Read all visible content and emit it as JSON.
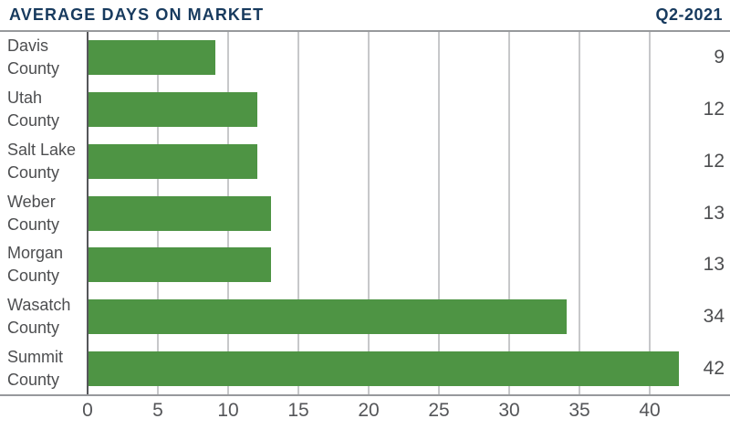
{
  "header": {
    "title": "AVERAGE DAYS ON MARKET",
    "period": "Q2-2021"
  },
  "colors": {
    "title": "#173a5e",
    "bar": "#4e9444",
    "label": "#4d4e50",
    "tick": "#545558",
    "grid": "#c7c8ca",
    "frame": "#97999c",
    "axis": "#55565a"
  },
  "chart_data": {
    "type": "bar",
    "orientation": "horizontal",
    "title": "AVERAGE DAYS ON MARKET",
    "subtitle": "Q2-2021",
    "categories": [
      "Davis County",
      "Utah County",
      "Salt Lake County",
      "Weber County",
      "Morgan County",
      "Wasatch County",
      "Summit County"
    ],
    "values": [
      9,
      12,
      12,
      13,
      13,
      34,
      42
    ],
    "value_labels": [
      9,
      12,
      12,
      13,
      13,
      34,
      42
    ],
    "xlabel": "",
    "ylabel": "",
    "xticks": [
      0,
      5,
      10,
      15,
      20,
      25,
      30,
      35,
      40
    ],
    "xlim": [
      0,
      45.7
    ],
    "grid": true,
    "legend": false,
    "bar_color": "#4e9444"
  }
}
